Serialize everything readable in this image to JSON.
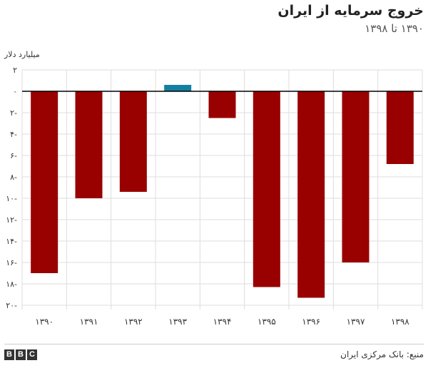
{
  "header": {
    "title": "خروج سرمایه از ایران",
    "subtitle": "۱۳۹۰ تا ۱۳۹۸"
  },
  "footer": {
    "logo_letters": [
      "B",
      "B",
      "C"
    ],
    "source": "منبع: بانک مرکزی ایران"
  },
  "colors": {
    "negative": "#990000",
    "positive": "#1380a1",
    "grid": "#dddddd",
    "zero_line": "#000000"
  },
  "chart_data": {
    "type": "bar",
    "ylabel": "میلیارد دلار",
    "ylim": [
      -20,
      2
    ],
    "yticks": [
      2,
      0,
      -2,
      -4,
      -6,
      -8,
      -10,
      -12,
      -14,
      -16,
      -18,
      -20
    ],
    "ytick_labels": [
      "۲",
      "۰",
      "۲-",
      "۴-",
      "۶-",
      "۸-",
      "۱۰-",
      "۱۲-",
      "۱۴-",
      "۱۶-",
      "۱۸-",
      "۲۰-"
    ],
    "categories": [
      "۱۳۹۰",
      "۱۳۹۱",
      "۱۳۹۲",
      "۱۳۹۳",
      "۱۳۹۴",
      "۱۳۹۵",
      "۱۳۹۶",
      "۱۳۹۷",
      "۱۳۹۸"
    ],
    "values": [
      -17,
      -10,
      -9.4,
      0.6,
      -2.5,
      -18.3,
      -19.3,
      -16,
      -6.8
    ],
    "grid": true,
    "legend": "none"
  }
}
